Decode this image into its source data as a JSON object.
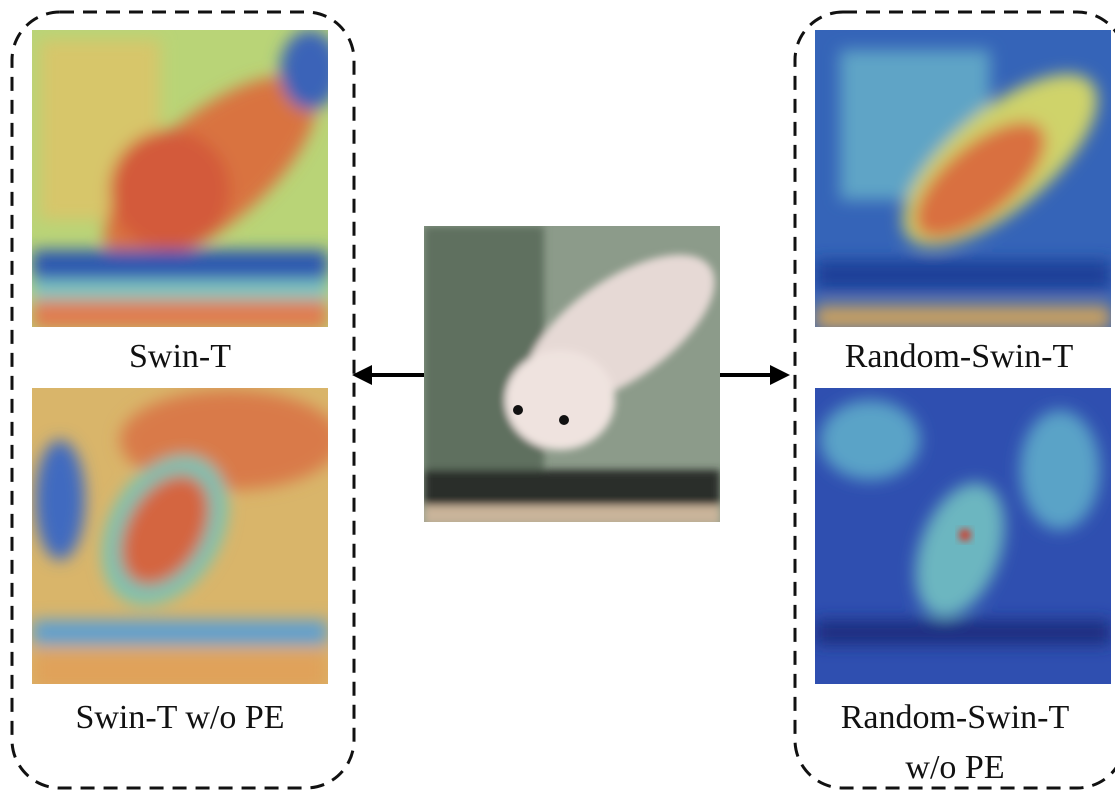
{
  "panels": {
    "left": {
      "top_label": "Swin-T",
      "bottom_label": "Swin-T w/o PE"
    },
    "right": {
      "top_label": "Random-Swin-T",
      "bottom_label": "Random-Swin-T w/o PE"
    }
  }
}
